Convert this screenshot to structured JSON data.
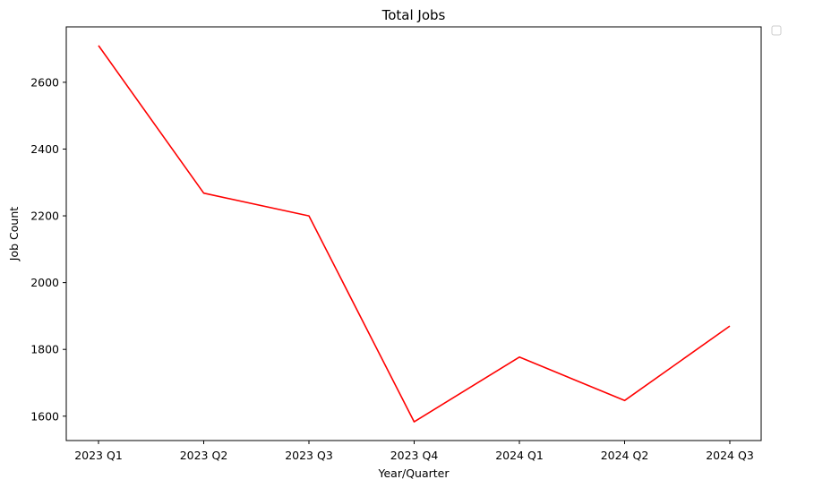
{
  "chart_data": {
    "type": "line",
    "title": "Total Jobs",
    "xlabel": "Year/Quarter",
    "ylabel": "Job Count",
    "categories": [
      "2023 Q1",
      "2023 Q2",
      "2023 Q3",
      "2023 Q4",
      "2024 Q1",
      "2024 Q2",
      "2024 Q3"
    ],
    "series": [
      {
        "values": [
          2710,
          2268,
          2200,
          1583,
          1777,
          1647,
          1870
        ],
        "color": "#ff0000"
      }
    ],
    "yticks": [
      1600,
      1800,
      2000,
      2200,
      2400,
      2600
    ],
    "ylim": [
      1527,
      2766
    ],
    "grid": false,
    "legend": "empty box outside plot, top-right"
  }
}
